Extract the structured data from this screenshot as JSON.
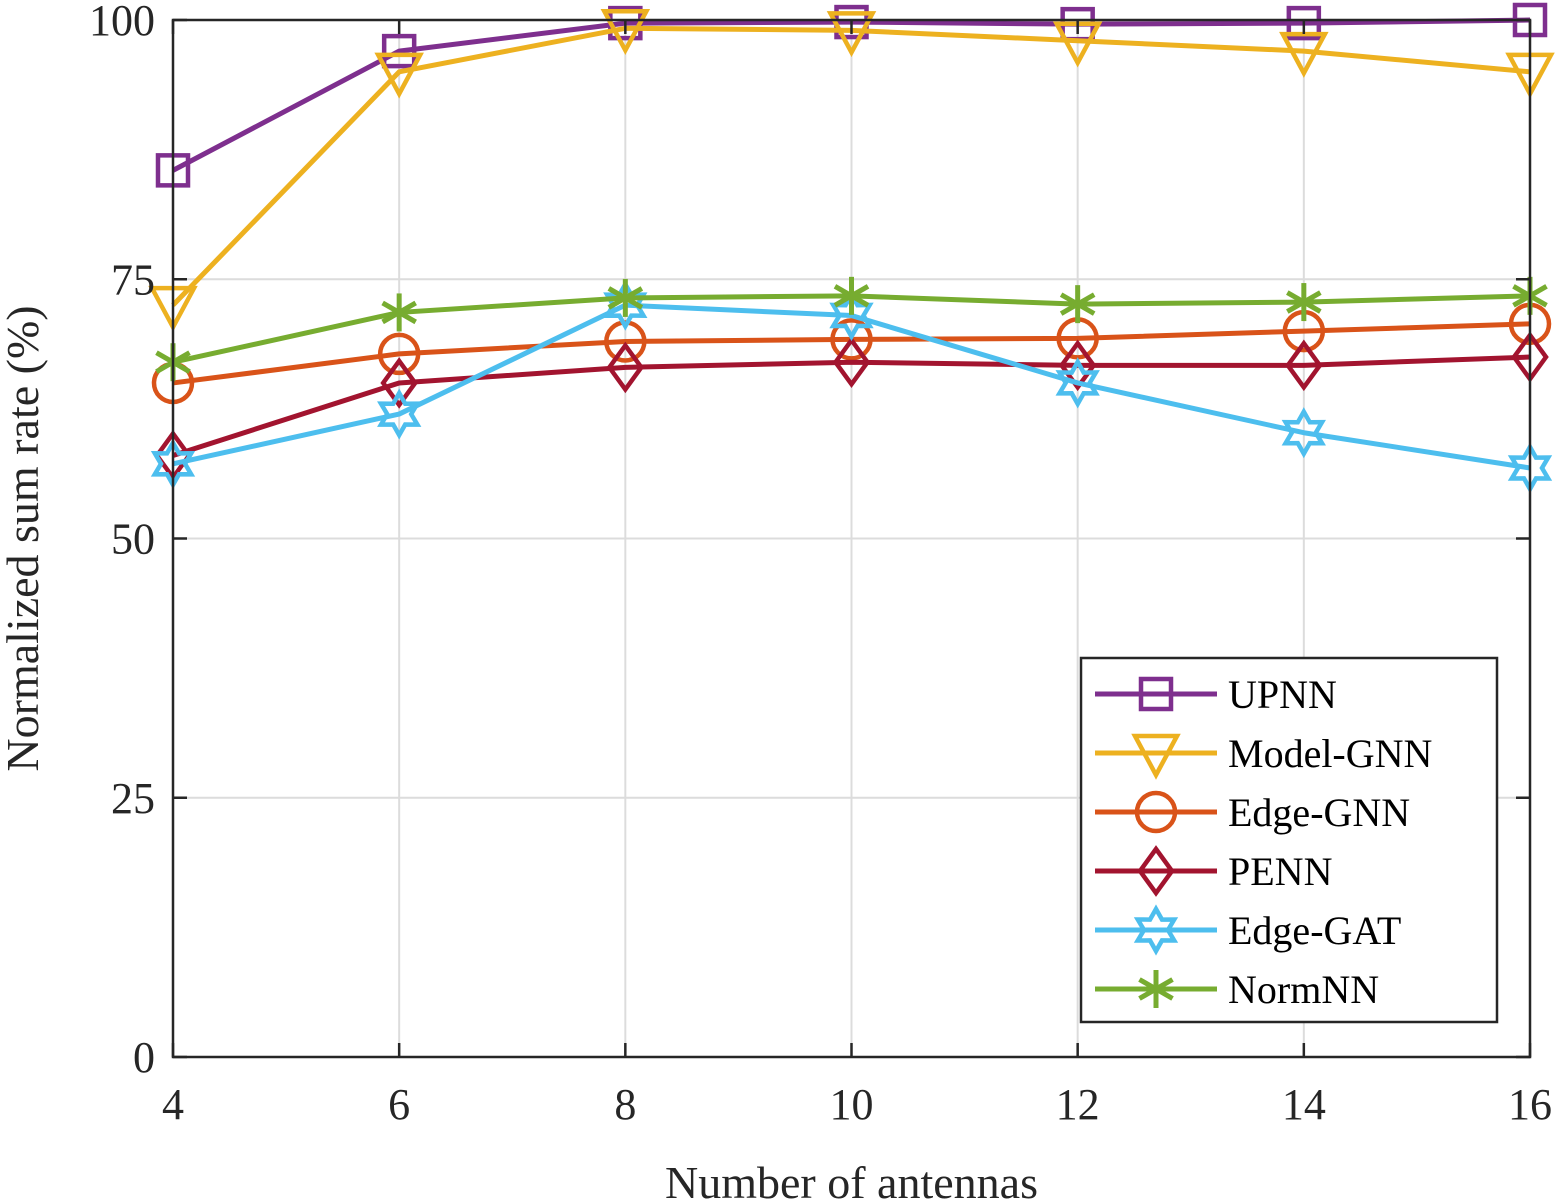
{
  "chart_data": {
    "type": "line",
    "title": "",
    "xlabel": "Number of antennas",
    "ylabel": "Normalized sum rate (%)",
    "xlim": [
      4,
      16
    ],
    "ylim": [
      0,
      100
    ],
    "x_ticks": [
      4,
      6,
      8,
      10,
      12,
      14,
      16
    ],
    "y_ticks": [
      0,
      25,
      50,
      75,
      100
    ],
    "grid": true,
    "legend_position": "bottom-right",
    "x": [
      4,
      6,
      8,
      10,
      12,
      14,
      16
    ],
    "series": [
      {
        "name": "UPNN",
        "color": "#7E2F8E",
        "marker": "square",
        "values": [
          85.5,
          97.0,
          99.7,
          99.8,
          99.6,
          99.7,
          100.0
        ]
      },
      {
        "name": "Model-GNN",
        "color": "#EDB120",
        "marker": "triangle-down",
        "values": [
          72.5,
          95.0,
          99.2,
          99.0,
          98.0,
          97.0,
          95.0
        ]
      },
      {
        "name": "Edge-GNN",
        "color": "#D95319",
        "marker": "circle",
        "values": [
          65.0,
          67.8,
          69.0,
          69.2,
          69.3,
          70.0,
          70.7
        ]
      },
      {
        "name": "PENN",
        "color": "#A2142F",
        "marker": "diamond",
        "values": [
          58.0,
          65.0,
          66.5,
          67.0,
          66.7,
          66.7,
          67.5
        ]
      },
      {
        "name": "Edge-GAT",
        "color": "#4DBEEE",
        "marker": "hexagram",
        "values": [
          57.2,
          62.0,
          72.5,
          71.5,
          65.0,
          60.2,
          56.8
        ]
      },
      {
        "name": "NormNN",
        "color": "#77AC30",
        "marker": "asterisk",
        "values": [
          67.0,
          71.8,
          73.2,
          73.4,
          72.6,
          72.8,
          73.4
        ]
      }
    ]
  }
}
